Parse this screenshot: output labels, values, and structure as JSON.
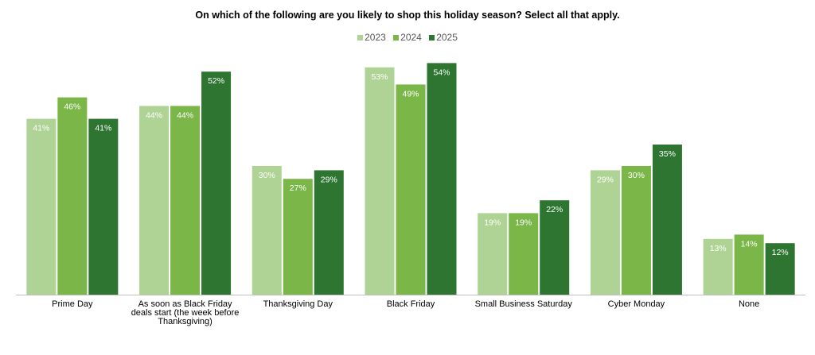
{
  "chart_data": {
    "type": "bar",
    "title": "On which of the following are you likely to shop  this holiday season?  Select all that apply.",
    "categories": [
      [
        "Prime Day"
      ],
      [
        "As soon as Black Friday",
        "deals start (the week before",
        "Thanksgiving)"
      ],
      [
        "Thanksgiving Day"
      ],
      [
        "Black Friday"
      ],
      [
        "Small Business Saturday"
      ],
      [
        "Cyber Monday"
      ],
      [
        "None"
      ]
    ],
    "series": [
      {
        "name": "2023",
        "color": "#aed394",
        "values": [
          41,
          44,
          30,
          53,
          19,
          29,
          13
        ],
        "labels": [
          "41%",
          "44%",
          "30%",
          "53%",
          "19%",
          "29%",
          "13%"
        ]
      },
      {
        "name": "2024",
        "color": "#7ab648",
        "values": [
          46,
          44,
          27,
          49,
          19,
          30,
          14
        ],
        "labels": [
          "46%",
          "44%",
          "27%",
          "49%",
          "19%",
          "30%",
          "14%"
        ]
      },
      {
        "name": "2025",
        "color": "#2e7532",
        "values": [
          41,
          52,
          29,
          54,
          22,
          35,
          12
        ],
        "labels": [
          "41%",
          "52%",
          "29%",
          "54%",
          "22%",
          "35%",
          "12%"
        ]
      }
    ],
    "ylim": [
      0,
      60
    ],
    "grid": false,
    "legend_position": "top-center"
  }
}
